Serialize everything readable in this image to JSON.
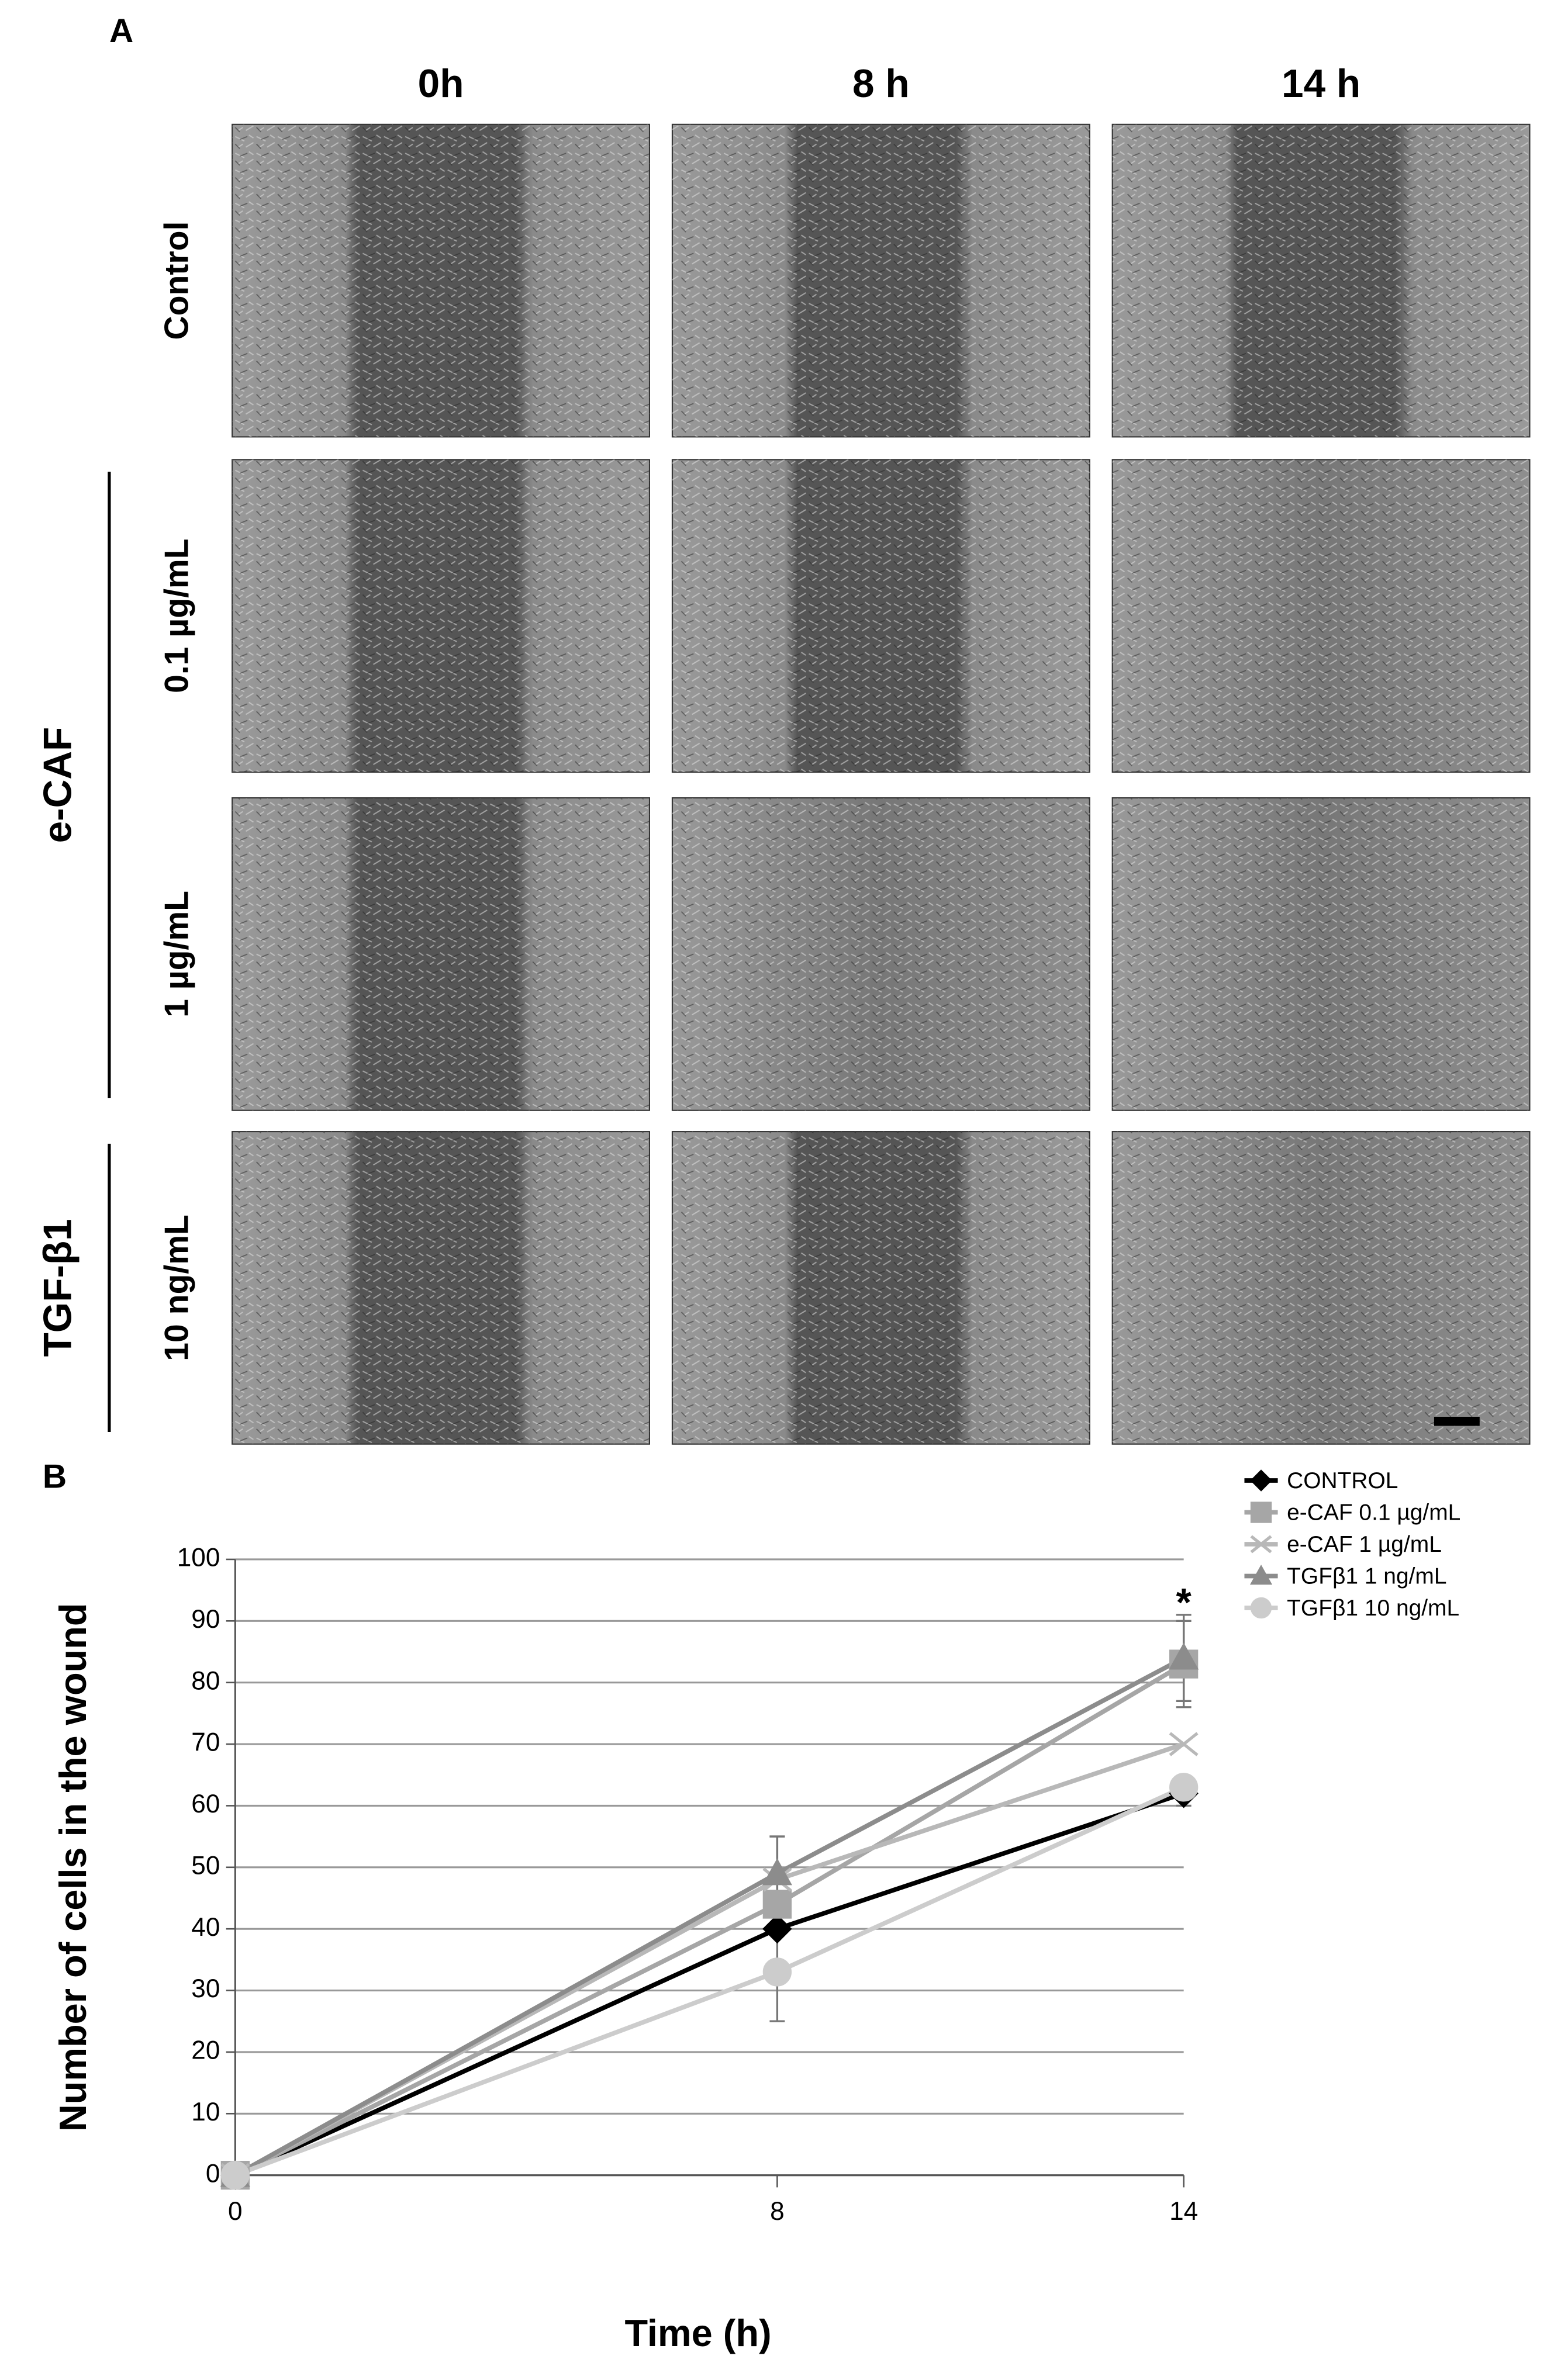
{
  "panel_labels": [
    "A",
    "B"
  ],
  "panel_a": {
    "columns": [
      "0h",
      "8 h",
      "14 h"
    ],
    "rows": [
      "Control",
      "0.1 µg/mL",
      "1 µg/mL",
      "10 ng/mL"
    ],
    "groups": [
      {
        "label": "e-CAF",
        "rows": [
          1,
          2
        ]
      },
      {
        "label": "TGF-β1",
        "rows": [
          3
        ]
      }
    ]
  },
  "chart_data": {
    "type": "line",
    "x_label": "Time (h)",
    "y_label": "Number of cells in the wound",
    "x": [
      0,
      8,
      14
    ],
    "xlim": [
      0,
      14
    ],
    "xticks": [
      0,
      8,
      14
    ],
    "ylim": [
      0,
      100
    ],
    "yticks": [
      0,
      10,
      20,
      30,
      40,
      50,
      60,
      70,
      80,
      90,
      100
    ],
    "grid": true,
    "legend": "right",
    "series": [
      {
        "name": "CONTROL",
        "color": "#000000",
        "marker": "diamond",
        "values": [
          0,
          40,
          62
        ],
        "errors": [
          null,
          15,
          2
        ]
      },
      {
        "name": "e-CAF  0.1 µg/mL",
        "color": "#a6a6a6",
        "marker": "square",
        "values": [
          0,
          44,
          83
        ],
        "errors": [
          null,
          null,
          7
        ]
      },
      {
        "name": "e-CAF  1 µg/mL",
        "color": "#b8b8b8",
        "marker": "x",
        "values": [
          0,
          48,
          70
        ],
        "errors": [
          null,
          null,
          null
        ]
      },
      {
        "name": "TGFβ1 1 ng/mL",
        "color": "#8c8c8c",
        "marker": "triangle",
        "values": [
          0,
          49,
          84
        ],
        "errors": [
          null,
          6,
          7
        ]
      },
      {
        "name": "TGFβ1 10 ng/mL",
        "color": "#cccccc",
        "marker": "circle",
        "values": [
          0,
          33,
          63
        ],
        "errors": [
          null,
          null,
          null
        ]
      }
    ],
    "annotations": [
      {
        "text": "*",
        "x": 14,
        "y": 94
      }
    ]
  }
}
